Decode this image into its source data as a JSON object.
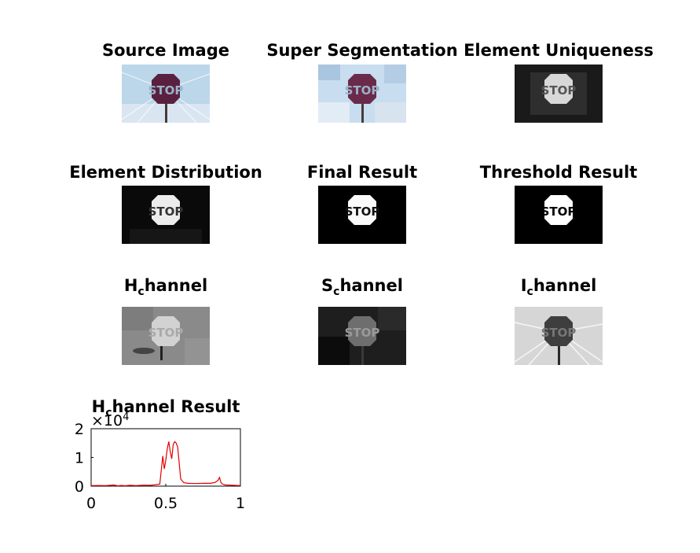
{
  "panels": [
    {
      "title": "Source Image"
    },
    {
      "title": "Super Segmentation"
    },
    {
      "title": "Element Uniqueness"
    },
    {
      "title": "Element Distribution"
    },
    {
      "title": "Final Result"
    },
    {
      "title": "Threshold Result"
    },
    {
      "title_main": "H",
      "title_sub": "c",
      "title_rest": "hannel"
    },
    {
      "title_main": "S",
      "title_sub": "c",
      "title_rest": "hannel"
    },
    {
      "title_main": "I",
      "title_sub": "c",
      "title_rest": "hannel"
    }
  ],
  "sign_text": "STOP",
  "hist": {
    "title_main": "H",
    "title_sub": "c",
    "title_rest": "hannel Result",
    "exponent_label": "×10",
    "exponent": "4"
  },
  "chart_data": {
    "type": "line",
    "xlim": [
      0,
      1
    ],
    "ylim": [
      0,
      2
    ],
    "y_scale_factor": 10000,
    "xticks": [
      "0",
      "0.5",
      "1"
    ],
    "yticks": [
      "0",
      "1",
      "2"
    ],
    "grid": false,
    "series": [
      {
        "color": "#e00000",
        "x": [
          0.0,
          0.05,
          0.1,
          0.15,
          0.18,
          0.2,
          0.23,
          0.26,
          0.3,
          0.35,
          0.4,
          0.43,
          0.46,
          0.48,
          0.49,
          0.5,
          0.51,
          0.52,
          0.53,
          0.54,
          0.55,
          0.56,
          0.57,
          0.58,
          0.59,
          0.6,
          0.62,
          0.65,
          0.7,
          0.75,
          0.8,
          0.83,
          0.85,
          0.86,
          0.87,
          0.88,
          0.9,
          0.95,
          1.0
        ],
        "y": [
          200,
          220,
          180,
          400,
          120,
          250,
          150,
          300,
          200,
          350,
          300,
          500,
          700,
          10500,
          6000,
          9000,
          13000,
          15500,
          12000,
          9500,
          14500,
          15500,
          15000,
          13500,
          8000,
          2500,
          1200,
          1000,
          900,
          1000,
          1000,
          1300,
          2000,
          3000,
          1200,
          700,
          400,
          300,
          200
        ]
      }
    ]
  }
}
